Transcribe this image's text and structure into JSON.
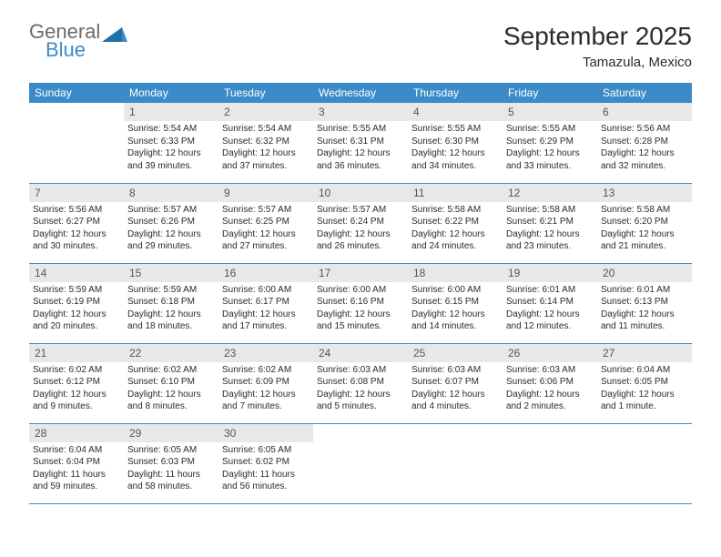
{
  "logo": {
    "part1": "General",
    "part2": "Blue"
  },
  "title": "September 2025",
  "location": "Tamazula, Mexico",
  "colors": {
    "header_bg": "#3b8bc9",
    "header_text": "#ffffff",
    "daynum_bg": "#e8e8e8",
    "daynum_text": "#555555",
    "body_text": "#2b2b2b",
    "rule": "#3b8bc9",
    "logo_gray": "#6a6a6a",
    "logo_blue": "#3b8bc9"
  },
  "weekdays": [
    "Sunday",
    "Monday",
    "Tuesday",
    "Wednesday",
    "Thursday",
    "Friday",
    "Saturday"
  ],
  "grid": [
    [
      null,
      {
        "n": "1",
        "sr": "5:54 AM",
        "ss": "6:33 PM",
        "dl": "12 hours and 39 minutes."
      },
      {
        "n": "2",
        "sr": "5:54 AM",
        "ss": "6:32 PM",
        "dl": "12 hours and 37 minutes."
      },
      {
        "n": "3",
        "sr": "5:55 AM",
        "ss": "6:31 PM",
        "dl": "12 hours and 36 minutes."
      },
      {
        "n": "4",
        "sr": "5:55 AM",
        "ss": "6:30 PM",
        "dl": "12 hours and 34 minutes."
      },
      {
        "n": "5",
        "sr": "5:55 AM",
        "ss": "6:29 PM",
        "dl": "12 hours and 33 minutes."
      },
      {
        "n": "6",
        "sr": "5:56 AM",
        "ss": "6:28 PM",
        "dl": "12 hours and 32 minutes."
      }
    ],
    [
      {
        "n": "7",
        "sr": "5:56 AM",
        "ss": "6:27 PM",
        "dl": "12 hours and 30 minutes."
      },
      {
        "n": "8",
        "sr": "5:57 AM",
        "ss": "6:26 PM",
        "dl": "12 hours and 29 minutes."
      },
      {
        "n": "9",
        "sr": "5:57 AM",
        "ss": "6:25 PM",
        "dl": "12 hours and 27 minutes."
      },
      {
        "n": "10",
        "sr": "5:57 AM",
        "ss": "6:24 PM",
        "dl": "12 hours and 26 minutes."
      },
      {
        "n": "11",
        "sr": "5:58 AM",
        "ss": "6:22 PM",
        "dl": "12 hours and 24 minutes."
      },
      {
        "n": "12",
        "sr": "5:58 AM",
        "ss": "6:21 PM",
        "dl": "12 hours and 23 minutes."
      },
      {
        "n": "13",
        "sr": "5:58 AM",
        "ss": "6:20 PM",
        "dl": "12 hours and 21 minutes."
      }
    ],
    [
      {
        "n": "14",
        "sr": "5:59 AM",
        "ss": "6:19 PM",
        "dl": "12 hours and 20 minutes."
      },
      {
        "n": "15",
        "sr": "5:59 AM",
        "ss": "6:18 PM",
        "dl": "12 hours and 18 minutes."
      },
      {
        "n": "16",
        "sr": "6:00 AM",
        "ss": "6:17 PM",
        "dl": "12 hours and 17 minutes."
      },
      {
        "n": "17",
        "sr": "6:00 AM",
        "ss": "6:16 PM",
        "dl": "12 hours and 15 minutes."
      },
      {
        "n": "18",
        "sr": "6:00 AM",
        "ss": "6:15 PM",
        "dl": "12 hours and 14 minutes."
      },
      {
        "n": "19",
        "sr": "6:01 AM",
        "ss": "6:14 PM",
        "dl": "12 hours and 12 minutes."
      },
      {
        "n": "20",
        "sr": "6:01 AM",
        "ss": "6:13 PM",
        "dl": "12 hours and 11 minutes."
      }
    ],
    [
      {
        "n": "21",
        "sr": "6:02 AM",
        "ss": "6:12 PM",
        "dl": "12 hours and 9 minutes."
      },
      {
        "n": "22",
        "sr": "6:02 AM",
        "ss": "6:10 PM",
        "dl": "12 hours and 8 minutes."
      },
      {
        "n": "23",
        "sr": "6:02 AM",
        "ss": "6:09 PM",
        "dl": "12 hours and 7 minutes."
      },
      {
        "n": "24",
        "sr": "6:03 AM",
        "ss": "6:08 PM",
        "dl": "12 hours and 5 minutes."
      },
      {
        "n": "25",
        "sr": "6:03 AM",
        "ss": "6:07 PM",
        "dl": "12 hours and 4 minutes."
      },
      {
        "n": "26",
        "sr": "6:03 AM",
        "ss": "6:06 PM",
        "dl": "12 hours and 2 minutes."
      },
      {
        "n": "27",
        "sr": "6:04 AM",
        "ss": "6:05 PM",
        "dl": "12 hours and 1 minute."
      }
    ],
    [
      {
        "n": "28",
        "sr": "6:04 AM",
        "ss": "6:04 PM",
        "dl": "11 hours and 59 minutes."
      },
      {
        "n": "29",
        "sr": "6:05 AM",
        "ss": "6:03 PM",
        "dl": "11 hours and 58 minutes."
      },
      {
        "n": "30",
        "sr": "6:05 AM",
        "ss": "6:02 PM",
        "dl": "11 hours and 56 minutes."
      },
      null,
      null,
      null,
      null
    ]
  ],
  "labels": {
    "sunrise": "Sunrise:",
    "sunset": "Sunset:",
    "daylight": "Daylight:"
  }
}
